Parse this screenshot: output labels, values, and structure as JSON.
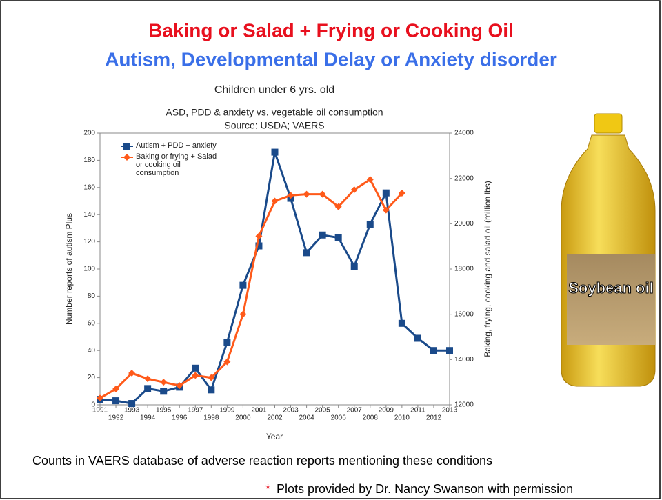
{
  "slide": {
    "title_line1": "Baking or Salad + Frying or Cooking Oil",
    "title_line2": "Autism, Developmental Delay or Anxiety disorder",
    "image_label": "Soybean oil",
    "caption": "Counts in VAERS database of adverse reaction reports mentioning these conditions",
    "footnote_mark": "*",
    "footnote": "Plots provided by Dr. Nancy Swanson with permission"
  },
  "chart_data": {
    "type": "line",
    "title": "Children under 6 yrs. old",
    "subtitle": [
      "ASD, PDD & anxiety vs. vegetable oil consumption",
      "Source: USDA; VAERS"
    ],
    "x_label": "Year",
    "y_label": "Number reports of autism Plus",
    "y2_label": "Baking, frying, cooking and salad oil (million lbs)",
    "x": [
      1991,
      1992,
      1993,
      1994,
      1995,
      1996,
      1997,
      1998,
      1999,
      2000,
      2001,
      2002,
      2003,
      2004,
      2005,
      2006,
      2007,
      2008,
      2009,
      2010,
      2011,
      2012,
      2013
    ],
    "xlim": [
      1991,
      2013
    ],
    "xticks": [
      1991,
      1992,
      1993,
      1994,
      1995,
      1996,
      1997,
      1998,
      1999,
      2000,
      2001,
      2002,
      2003,
      2004,
      2005,
      2006,
      2007,
      2008,
      2009,
      2010,
      2011,
      2012,
      2013
    ],
    "ylim": [
      0,
      200
    ],
    "yticks": [
      0,
      20,
      40,
      60,
      80,
      100,
      120,
      140,
      160,
      180,
      200
    ],
    "y2lim": [
      12000,
      24000
    ],
    "y2ticks": [
      12000,
      14000,
      16000,
      18000,
      20000,
      22000,
      24000
    ],
    "grid": false,
    "legend": "upper left",
    "series": [
      {
        "name": "Autism + PDD + anxiety",
        "color": "#1a4a8a",
        "marker": "square",
        "values": [
          4,
          3,
          1,
          12,
          10,
          13,
          27,
          11,
          46,
          88,
          117,
          186,
          152,
          112,
          125,
          123,
          102,
          133,
          156,
          60,
          49,
          40,
          40
        ]
      },
      {
        "name": "Baking or frying + Salad or cooking oil consumption",
        "color": "#ff5a1a",
        "marker": "diamond",
        "axis": "y2",
        "values": [
          12300,
          12700,
          13400,
          13150,
          13000,
          12850,
          13300,
          13200,
          13900,
          16000,
          19450,
          21000,
          21250,
          21300,
          21300,
          20750,
          21500,
          21950,
          20600,
          21350,
          null,
          null,
          null
        ]
      }
    ]
  }
}
